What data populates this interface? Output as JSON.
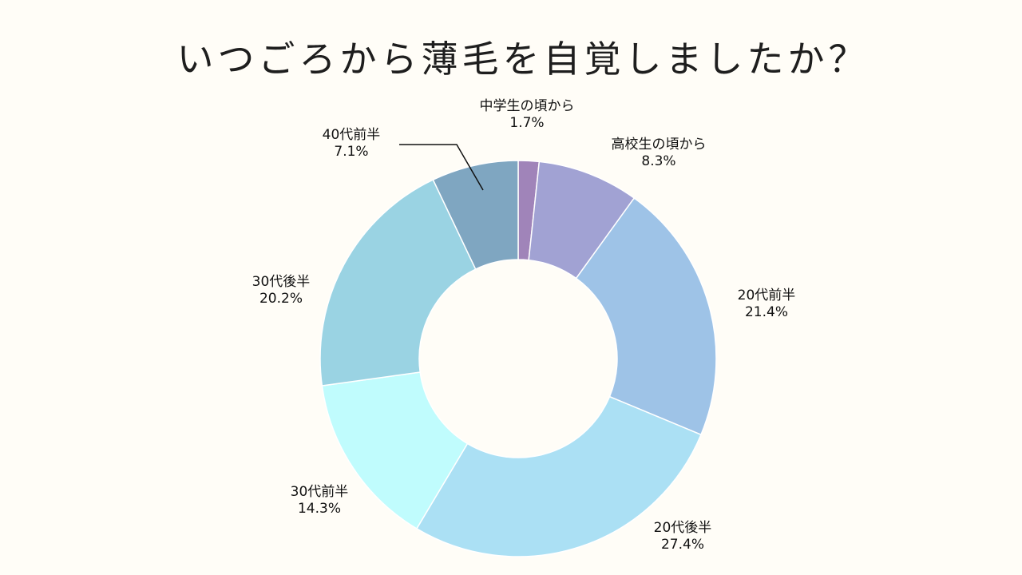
{
  "chart_data": {
    "type": "pie",
    "title": "いつごろから薄毛を自覚しましたか？",
    "categories": [
      "中学生の頃から",
      "高校生の頃から",
      "20代前半",
      "20代後半",
      "30代前半",
      "30代後半",
      "40代前半"
    ],
    "values": [
      1.7,
      8.3,
      21.4,
      27.4,
      14.3,
      20.2,
      7.1
    ],
    "value_labels": [
      "1.7%",
      "8.3%",
      "21.4%",
      "27.4%",
      "14.3%",
      "20.2%",
      "7.1%"
    ],
    "colors": [
      "#a084b9",
      "#a1a2d3",
      "#9ec3e7",
      "#abe0f4",
      "#c0fcfd",
      "#9ad3e3",
      "#7fa6c1"
    ],
    "donut": true,
    "legend": "none",
    "labels_outside": true
  }
}
